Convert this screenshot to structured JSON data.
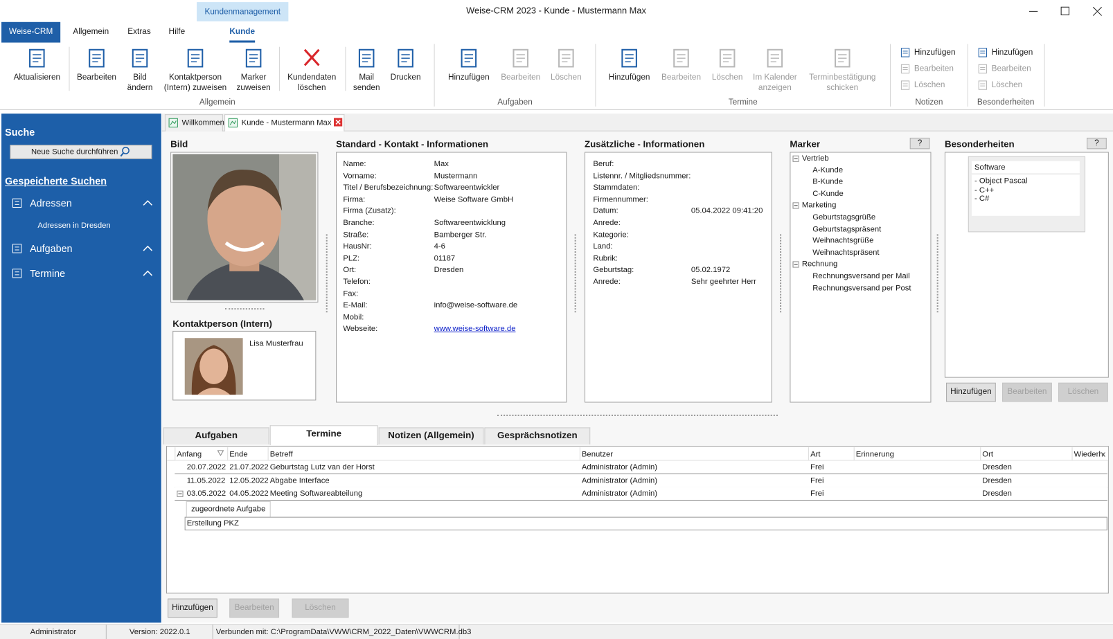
{
  "title_bar": {
    "context_tab": "Kundenmanagement",
    "title": "Weise-CRM 2023 - Kunde - Mustermann Max"
  },
  "menu": {
    "app_button": "Weise-CRM",
    "tabs": [
      {
        "label": "Allgemein"
      },
      {
        "label": "Extras"
      },
      {
        "label": "Hilfe"
      },
      {
        "label": "Kunde",
        "active": true
      }
    ]
  },
  "ribbon": {
    "groups": [
      {
        "label": "Allgemein",
        "buttons": [
          {
            "label": "Aktualisieren",
            "enabled": true
          },
          {
            "label": "Bearbeiten",
            "enabled": true
          },
          {
            "label": "Bild ändern",
            "enabled": true
          },
          {
            "label": "Kontaktperson (Intern) zuweisen",
            "enabled": true
          },
          {
            "label": "Marker zuweisen",
            "enabled": true
          },
          {
            "label": "Kundendaten löschen",
            "enabled": true
          },
          {
            "label": "Mail senden",
            "enabled": true
          },
          {
            "label": "Drucken",
            "enabled": true
          }
        ]
      },
      {
        "label": "Aufgaben",
        "buttons": [
          {
            "label": "Hinzufügen",
            "enabled": true
          },
          {
            "label": "Bearbeiten",
            "enabled": false
          },
          {
            "label": "Löschen",
            "enabled": false
          }
        ]
      },
      {
        "label": "Termine",
        "buttons": [
          {
            "label": "Hinzufügen",
            "enabled": true
          },
          {
            "label": "Bearbeiten",
            "enabled": false
          },
          {
            "label": "Löschen",
            "enabled": false
          },
          {
            "label": "Im Kalender anzeigen",
            "enabled": false
          },
          {
            "label": "Terminbestätigung schicken",
            "enabled": false
          }
        ]
      },
      {
        "label": "Notizen",
        "buttons": [
          {
            "label": "Hinzufügen",
            "enabled": true
          },
          {
            "label": "Bearbeiten",
            "enabled": false
          },
          {
            "label": "Löschen",
            "enabled": false
          }
        ]
      },
      {
        "label": "Besonderheiten",
        "buttons": [
          {
            "label": "Hinzufügen",
            "enabled": true
          },
          {
            "label": "Bearbeiten",
            "enabled": false
          },
          {
            "label": "Löschen",
            "enabled": false
          }
        ]
      }
    ]
  },
  "sidebar": {
    "search_title": "Suche",
    "search_button": "Neue Suche durchführen",
    "saved_title": "Gespeicherte Suchen",
    "groups": [
      {
        "label": "Adressen",
        "items": [
          "Adressen in Dresden"
        ]
      },
      {
        "label": "Aufgaben",
        "items": []
      },
      {
        "label": "Termine",
        "items": []
      }
    ]
  },
  "doc_tabs": [
    "Willkommen",
    "Kunde - Mustermann Max"
  ],
  "bild": {
    "title": "Bild"
  },
  "kontaktperson": {
    "title": "Kontaktperson (Intern)",
    "name": "Lisa Musterfrau"
  },
  "standard": {
    "title": "Standard - Kontakt - Informationen",
    "fields": [
      {
        "label": "Name:",
        "value": "Max"
      },
      {
        "label": "Vorname:",
        "value": "Mustermann"
      },
      {
        "label": "Titel / Berufsbezeichnung:",
        "value": "Softwareentwickler"
      },
      {
        "label": "Firma:",
        "value": "Weise Software GmbH"
      },
      {
        "label": "Firma (Zusatz):"
      },
      {
        "label": "Branche:",
        "value": "Softwareentwicklung"
      },
      {
        "label": "Straße:",
        "value": "Bamberger Str."
      },
      {
        "label": "HausNr:",
        "value": "4-6"
      },
      {
        "label": "PLZ:",
        "value": "01187"
      },
      {
        "label": "Ort:",
        "value": "Dresden"
      },
      {
        "label": "Telefon:"
      },
      {
        "label": "Fax:"
      },
      {
        "label": "E-Mail:",
        "value": "info@weise-software.de"
      },
      {
        "label": "Mobil:"
      },
      {
        "label": "Webseite:",
        "value": "www.weise-software.de",
        "link": true
      }
    ]
  },
  "zusaetzlich": {
    "title": "Zusätzliche - Informationen",
    "fields": [
      {
        "label": "Beruf:"
      },
      {
        "label": "Listennr. / Mitgliedsnummer:"
      },
      {
        "label": "Stammdaten:"
      },
      {
        "label": "Firmennummer:"
      },
      {
        "label": "Datum:",
        "value": "05.04.2022 09:41:20"
      },
      {
        "label": "Anrede:"
      },
      {
        "label": "Kategorie:"
      },
      {
        "label": "Land:"
      },
      {
        "label": "Rubrik:"
      },
      {
        "label": "Geburtstag:",
        "value": "05.02.1972"
      },
      {
        "label": "Anrede:",
        "value": "Sehr geehrter Herr"
      }
    ]
  },
  "marker": {
    "title": "Marker",
    "help": "?",
    "tree": [
      {
        "label": "Vertrieb",
        "children": [
          "A-Kunde",
          "B-Kunde",
          "C-Kunde"
        ]
      },
      {
        "label": "Marketing",
        "children": [
          "Geburtstagsgrüße",
          "Geburtstagspräsent",
          "Weihnachtsgrüße",
          "Weihnachtspräsent"
        ]
      },
      {
        "label": "Rechnung",
        "children": [
          "Rechnungsversand per Mail",
          "Rechnungsversand per Post"
        ]
      }
    ]
  },
  "besonderheiten": {
    "title": "Besonderheiten",
    "help": "?",
    "card": {
      "header": "Software",
      "lines": [
        "- Object Pascal",
        "- C++",
        "- C#"
      ]
    },
    "buttons": [
      {
        "label": "Hinzufügen",
        "enabled": true
      },
      {
        "label": "Bearbeiten",
        "enabled": false
      },
      {
        "label": "Löschen",
        "enabled": false
      }
    ]
  },
  "bottom_tabs": [
    {
      "label": "Aufgaben"
    },
    {
      "label": "Termine",
      "active": true
    },
    {
      "label": "Notizen (Allgemein)"
    },
    {
      "label": "Gesprächsnotizen"
    }
  ],
  "grid": {
    "columns": [
      "Anfang",
      "Ende",
      "Betreff",
      "Benutzer",
      "Art",
      "Erinnerung",
      "Ort",
      "Wiederhc"
    ],
    "rows": [
      {
        "anfang": "20.07.2022",
        "ende": "21.07.2022",
        "betreff": "Geburtstag Lutz van der Horst",
        "benutzer": "Administrator (Admin)",
        "art": "Frei",
        "ort": "Dresden"
      },
      {
        "anfang": "11.05.2022",
        "ende": "12.05.2022",
        "betreff": "Abgabe Interface",
        "benutzer": "Administrator (Admin)",
        "art": "Frei",
        "ort": "Dresden"
      },
      {
        "anfang": "03.05.2022",
        "ende": "04.05.2022",
        "betreff": "Meeting Softwareabteilung",
        "benutzer": "Administrator (Admin)",
        "art": "Frei",
        "ort": "Dresden",
        "detail": {
          "tab": "zugeordnete Aufgabe",
          "rows": [
            "Erstellung PKZ"
          ]
        }
      }
    ],
    "buttons": [
      {
        "label": "Hinzufügen",
        "enabled": true
      },
      {
        "label": "Bearbeiten",
        "enabled": false
      },
      {
        "label": "Löschen",
        "enabled": false
      }
    ]
  },
  "status_bar": [
    "Administrator",
    "Version: 2022.0.1",
    "Verbunden mit: C:\\ProgramData\\VWW\\CRM_2022_Daten\\VWWCRM.db3"
  ]
}
